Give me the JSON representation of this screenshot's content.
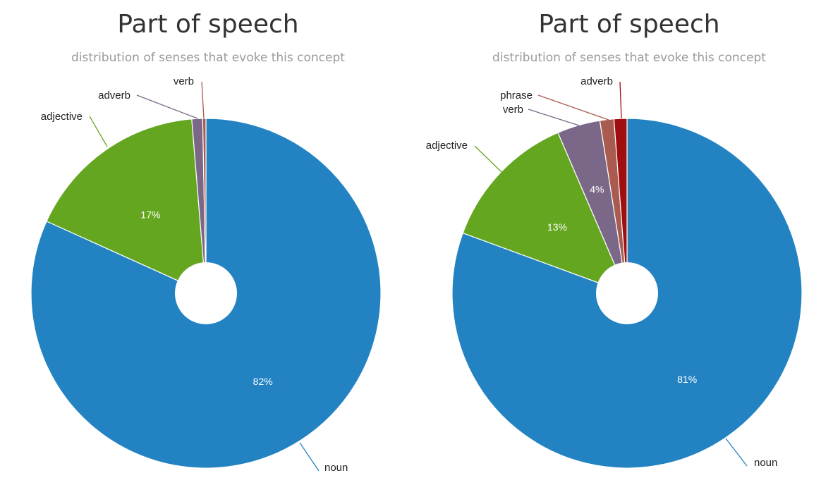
{
  "chart_data": [
    {
      "type": "pie",
      "title": "Part of speech",
      "subtitle": "distribution of senses that evoke this concept",
      "categories": [
        "noun",
        "adjective",
        "adverb",
        "verb"
      ],
      "values": [
        82,
        17,
        1,
        0.3
      ],
      "percent_labels": [
        "82%",
        "17%",
        "",
        ""
      ],
      "colors": [
        "#2383c2",
        "#65a620",
        "#7b6888",
        "#aa5b4f"
      ]
    },
    {
      "type": "pie",
      "title": "Part of speech",
      "subtitle": "distribution of senses that evoke this concept",
      "categories": [
        "noun",
        "adjective",
        "verb",
        "phrase",
        "adverb"
      ],
      "values": [
        81,
        13,
        4,
        1.3,
        1.2
      ],
      "percent_labels": [
        "81%",
        "13%",
        "4%",
        "",
        ""
      ],
      "colors": [
        "#2383c2",
        "#65a620",
        "#7b6888",
        "#aa5b4f",
        "#a00f0f"
      ]
    }
  ]
}
